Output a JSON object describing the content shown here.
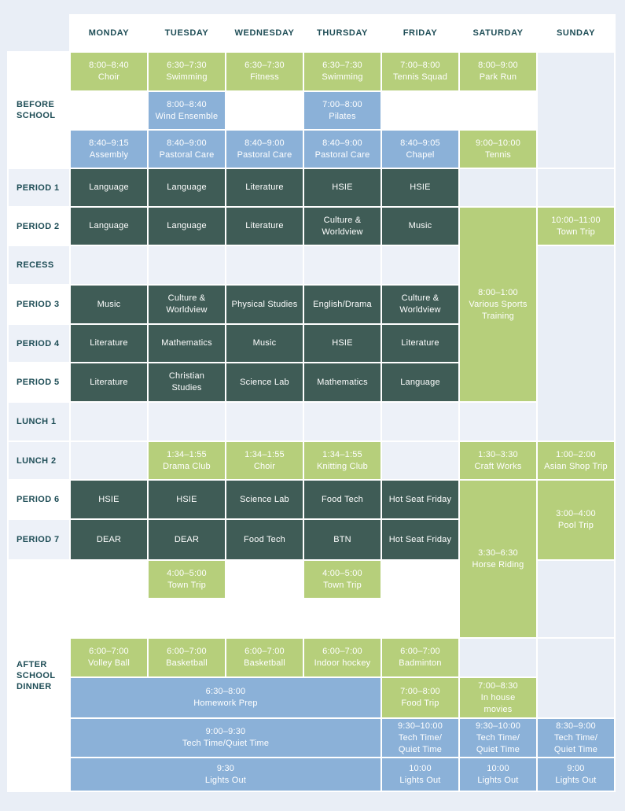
{
  "title": "Weekly school timetable",
  "colors": {
    "green": "#b6cf7b",
    "blue": "#8bb1d8",
    "dark": "#3f5c56",
    "stripe": "#edf1f8",
    "pagebg": "#e9eef6",
    "ink": "#1e4d56",
    "cell_text": "#ffffff"
  },
  "days": [
    "MONDAY",
    "TUESDAY",
    "WEDNESDAY",
    "THURSDAY",
    "FRIDAY",
    "SATURDAY",
    "SUNDAY"
  ],
  "cells": [
    {
      "r": 2,
      "c": 1,
      "rs": 3,
      "k": "label",
      "name": "row-label-before-school",
      "lines": [
        "BEFORE",
        "SCHOOL"
      ]
    },
    {
      "r": 5,
      "c": 1,
      "k": "label-stripe",
      "name": "row-label-period-1",
      "lines": [
        "PERIOD 1"
      ]
    },
    {
      "r": 6,
      "c": 1,
      "k": "label",
      "name": "row-label-period-2",
      "lines": [
        "PERIOD 2"
      ]
    },
    {
      "r": 7,
      "c": 1,
      "k": "label-stripe",
      "name": "row-label-recess",
      "lines": [
        "RECESS"
      ]
    },
    {
      "r": 8,
      "c": 1,
      "k": "label",
      "name": "row-label-period-3",
      "lines": [
        "PERIOD 3"
      ]
    },
    {
      "r": 9,
      "c": 1,
      "k": "label-stripe",
      "name": "row-label-period-4",
      "lines": [
        "PERIOD 4"
      ]
    },
    {
      "r": 10,
      "c": 1,
      "k": "label",
      "name": "row-label-period-5",
      "lines": [
        "PERIOD 5"
      ]
    },
    {
      "r": 11,
      "c": 1,
      "k": "label-stripe",
      "name": "row-label-lunch-1",
      "lines": [
        "LUNCH 1"
      ]
    },
    {
      "r": 12,
      "c": 1,
      "k": "label-stripe",
      "name": "row-label-lunch-2",
      "lines": [
        "LUNCH 2"
      ]
    },
    {
      "r": 13,
      "c": 1,
      "k": "label",
      "name": "row-label-period-6",
      "lines": [
        "PERIOD 6"
      ]
    },
    {
      "r": 14,
      "c": 1,
      "k": "label-stripe",
      "name": "row-label-period-7",
      "lines": [
        "PERIOD 7"
      ]
    },
    {
      "r": 15,
      "c": 1,
      "rs": 6,
      "k": "label-after",
      "name": "row-label-after-school-dinner",
      "lines": [
        "AFTER",
        "SCHOOL",
        "DINNER"
      ]
    },
    {
      "r": 2,
      "c": 2,
      "k": "green",
      "lines": [
        "8:00–8:40",
        "Choir"
      ]
    },
    {
      "r": 2,
      "c": 3,
      "k": "green",
      "lines": [
        "6:30–7:30",
        "Swimming"
      ]
    },
    {
      "r": 2,
      "c": 4,
      "k": "green",
      "lines": [
        "6:30–7:30",
        "Fitness"
      ]
    },
    {
      "r": 2,
      "c": 5,
      "k": "green",
      "lines": [
        "6:30–7:30",
        "Swimming"
      ]
    },
    {
      "r": 2,
      "c": 6,
      "k": "green",
      "lines": [
        "7:00–8:00",
        "Tennis Squad"
      ]
    },
    {
      "r": 2,
      "c": 7,
      "k": "green",
      "lines": [
        "8:00–9:00",
        "Park Run"
      ]
    },
    {
      "r": 2,
      "c": 8,
      "rs": 3,
      "k": "bg"
    },
    {
      "r": 3,
      "c": 2,
      "k": "white"
    },
    {
      "r": 3,
      "c": 3,
      "k": "blue",
      "lines": [
        "8:00–8:40",
        "Wind Ensemble"
      ]
    },
    {
      "r": 3,
      "c": 4,
      "k": "white"
    },
    {
      "r": 3,
      "c": 5,
      "k": "blue",
      "lines": [
        "7:00–8:00",
        "Pilates"
      ]
    },
    {
      "r": 3,
      "c": 6,
      "k": "white"
    },
    {
      "r": 3,
      "c": 7,
      "k": "white"
    },
    {
      "r": 4,
      "c": 2,
      "k": "blue",
      "lines": [
        "8:40–9:15",
        "Assembly"
      ]
    },
    {
      "r": 4,
      "c": 3,
      "k": "blue",
      "lines": [
        "8:40–9:00",
        "Pastoral Care"
      ]
    },
    {
      "r": 4,
      "c": 4,
      "k": "blue",
      "lines": [
        "8:40–9:00",
        "Pastoral Care"
      ]
    },
    {
      "r": 4,
      "c": 5,
      "k": "blue",
      "lines": [
        "8:40–9:00",
        "Pastoral Care"
      ]
    },
    {
      "r": 4,
      "c": 6,
      "k": "blue",
      "lines": [
        "8:40–9:05",
        "Chapel"
      ]
    },
    {
      "r": 4,
      "c": 7,
      "k": "green",
      "lines": [
        "9:00–10:00",
        "Tennis"
      ]
    },
    {
      "r": 5,
      "c": 2,
      "k": "dark",
      "lines": [
        "Language"
      ]
    },
    {
      "r": 5,
      "c": 3,
      "k": "dark",
      "lines": [
        "Language"
      ]
    },
    {
      "r": 5,
      "c": 4,
      "k": "dark",
      "lines": [
        "Literature"
      ]
    },
    {
      "r": 5,
      "c": 5,
      "k": "dark",
      "lines": [
        "HSIE"
      ]
    },
    {
      "r": 5,
      "c": 6,
      "k": "dark",
      "lines": [
        "HSIE"
      ]
    },
    {
      "r": 5,
      "c": 7,
      "k": "bg"
    },
    {
      "r": 5,
      "c": 8,
      "k": "bg"
    },
    {
      "r": 6,
      "c": 2,
      "k": "dark",
      "lines": [
        "Language"
      ]
    },
    {
      "r": 6,
      "c": 3,
      "k": "dark",
      "lines": [
        "Language"
      ]
    },
    {
      "r": 6,
      "c": 4,
      "k": "dark",
      "lines": [
        "Literature"
      ]
    },
    {
      "r": 6,
      "c": 5,
      "k": "dark",
      "lines": [
        "Culture &",
        "Worldview"
      ]
    },
    {
      "r": 6,
      "c": 6,
      "k": "dark",
      "lines": [
        "Music"
      ]
    },
    {
      "r": 6,
      "c": 7,
      "rs": 5,
      "k": "green",
      "lines": [
        "8:00–1:00",
        "Various Sports",
        "Training"
      ]
    },
    {
      "r": 6,
      "c": 8,
      "k": "green",
      "lines": [
        "10:00–11:00",
        "Town Trip"
      ]
    },
    {
      "r": 7,
      "c": 2,
      "k": "stripe"
    },
    {
      "r": 7,
      "c": 3,
      "k": "stripe"
    },
    {
      "r": 7,
      "c": 4,
      "k": "stripe"
    },
    {
      "r": 7,
      "c": 5,
      "k": "stripe"
    },
    {
      "r": 7,
      "c": 6,
      "k": "stripe"
    },
    {
      "r": 7,
      "c": 8,
      "rs": 5,
      "k": "bg"
    },
    {
      "r": 8,
      "c": 2,
      "k": "dark",
      "lines": [
        "Music"
      ]
    },
    {
      "r": 8,
      "c": 3,
      "k": "dark",
      "lines": [
        "Culture &",
        "Worldview"
      ]
    },
    {
      "r": 8,
      "c": 4,
      "k": "dark",
      "lines": [
        "Physical Studies"
      ]
    },
    {
      "r": 8,
      "c": 5,
      "k": "dark",
      "lines": [
        "English/Drama"
      ]
    },
    {
      "r": 8,
      "c": 6,
      "k": "dark",
      "lines": [
        "Culture &",
        "Worldview"
      ]
    },
    {
      "r": 9,
      "c": 2,
      "k": "dark",
      "lines": [
        "Literature"
      ]
    },
    {
      "r": 9,
      "c": 3,
      "k": "dark",
      "lines": [
        "Mathematics"
      ]
    },
    {
      "r": 9,
      "c": 4,
      "k": "dark",
      "lines": [
        "Music"
      ]
    },
    {
      "r": 9,
      "c": 5,
      "k": "dark",
      "lines": [
        "HSIE"
      ]
    },
    {
      "r": 9,
      "c": 6,
      "k": "dark",
      "lines": [
        "Literature"
      ]
    },
    {
      "r": 10,
      "c": 2,
      "k": "dark",
      "lines": [
        "Literature"
      ]
    },
    {
      "r": 10,
      "c": 3,
      "k": "dark",
      "lines": [
        "Christian",
        "Studies"
      ]
    },
    {
      "r": 10,
      "c": 4,
      "k": "dark",
      "lines": [
        "Science Lab"
      ]
    },
    {
      "r": 10,
      "c": 5,
      "k": "dark",
      "lines": [
        "Mathematics"
      ]
    },
    {
      "r": 10,
      "c": 6,
      "k": "dark",
      "lines": [
        "Language"
      ]
    },
    {
      "r": 11,
      "c": 2,
      "k": "stripe"
    },
    {
      "r": 11,
      "c": 3,
      "k": "stripe"
    },
    {
      "r": 11,
      "c": 4,
      "k": "stripe"
    },
    {
      "r": 11,
      "c": 5,
      "k": "stripe"
    },
    {
      "r": 11,
      "c": 6,
      "k": "stripe"
    },
    {
      "r": 11,
      "c": 7,
      "k": "stripe"
    },
    {
      "r": 12,
      "c": 2,
      "k": "stripe"
    },
    {
      "r": 12,
      "c": 3,
      "k": "green",
      "lines": [
        "1:34–1:55",
        "Drama Club"
      ]
    },
    {
      "r": 12,
      "c": 4,
      "k": "green",
      "lines": [
        "1:34–1:55",
        "Choir"
      ]
    },
    {
      "r": 12,
      "c": 5,
      "k": "green",
      "lines": [
        "1:34–1:55",
        "Knitting Club"
      ]
    },
    {
      "r": 12,
      "c": 6,
      "k": "stripe"
    },
    {
      "r": 12,
      "c": 7,
      "k": "green",
      "lines": [
        "1:30–3:30",
        "Craft Works"
      ]
    },
    {
      "r": 12,
      "c": 8,
      "k": "green",
      "lines": [
        "1:00–2:00",
        "Asian Shop Trip"
      ]
    },
    {
      "r": 13,
      "c": 2,
      "k": "dark",
      "lines": [
        "HSIE"
      ]
    },
    {
      "r": 13,
      "c": 3,
      "k": "dark",
      "lines": [
        "HSIE"
      ]
    },
    {
      "r": 13,
      "c": 4,
      "k": "dark",
      "lines": [
        "Science Lab"
      ]
    },
    {
      "r": 13,
      "c": 5,
      "k": "dark",
      "lines": [
        "Food Tech"
      ]
    },
    {
      "r": 13,
      "c": 6,
      "k": "dark",
      "lines": [
        "Hot Seat Friday"
      ]
    },
    {
      "r": 13,
      "c": 7,
      "rs": 4,
      "k": "green",
      "lines": [
        "3:30–6:30",
        "Horse Riding"
      ]
    },
    {
      "r": 13,
      "c": 8,
      "rs": 2,
      "k": "green",
      "lines": [
        "3:00–4:00",
        "Pool Trip"
      ]
    },
    {
      "r": 14,
      "c": 2,
      "k": "dark",
      "lines": [
        "DEAR"
      ]
    },
    {
      "r": 14,
      "c": 3,
      "k": "dark",
      "lines": [
        "DEAR"
      ]
    },
    {
      "r": 14,
      "c": 4,
      "k": "dark",
      "lines": [
        "Food Tech"
      ]
    },
    {
      "r": 14,
      "c": 5,
      "k": "dark",
      "lines": [
        "BTN"
      ]
    },
    {
      "r": 14,
      "c": 6,
      "k": "dark",
      "lines": [
        "Hot Seat Friday"
      ]
    },
    {
      "r": 15,
      "c": 2,
      "k": "white"
    },
    {
      "r": 15,
      "c": 3,
      "k": "green",
      "lines": [
        "4:00–5:00",
        "Town Trip"
      ]
    },
    {
      "r": 15,
      "c": 4,
      "k": "white"
    },
    {
      "r": 15,
      "c": 5,
      "k": "green",
      "lines": [
        "4:00–5:00",
        "Town Trip"
      ]
    },
    {
      "r": 15,
      "c": 6,
      "k": "white"
    },
    {
      "r": 15,
      "c": 8,
      "rs": 2,
      "k": "bg"
    },
    {
      "r": 16,
      "c": 2,
      "cs": 5,
      "k": "white"
    },
    {
      "r": 17,
      "c": 2,
      "k": "green",
      "lines": [
        "6:00–7:00",
        "Volley Ball"
      ]
    },
    {
      "r": 17,
      "c": 3,
      "k": "green",
      "lines": [
        "6:00–7:00",
        "Basketball"
      ]
    },
    {
      "r": 17,
      "c": 4,
      "k": "green",
      "lines": [
        "6:00–7:00",
        "Basketball"
      ]
    },
    {
      "r": 17,
      "c": 5,
      "k": "green",
      "lines": [
        "6:00–7:00",
        "Indoor hockey"
      ]
    },
    {
      "r": 17,
      "c": 6,
      "k": "green",
      "lines": [
        "6:00–7:00",
        "Badminton"
      ]
    },
    {
      "r": 17,
      "c": 7,
      "k": "bg"
    },
    {
      "r": 17,
      "c": 8,
      "rs": 2,
      "k": "bg"
    },
    {
      "r": 18,
      "c": 2,
      "cs": 4,
      "k": "blue",
      "lines": [
        "6:30–8:00",
        "Homework Prep"
      ]
    },
    {
      "r": 18,
      "c": 6,
      "k": "green",
      "lines": [
        "7:00–8:00",
        "Food Trip"
      ]
    },
    {
      "r": 18,
      "c": 7,
      "k": "green",
      "lines": [
        "7:00–8:30",
        "In house",
        "movies"
      ]
    },
    {
      "r": 19,
      "c": 2,
      "cs": 4,
      "k": "blue",
      "lines": [
        "9:00–9:30",
        "Tech Time/Quiet Time"
      ]
    },
    {
      "r": 19,
      "c": 6,
      "k": "blue",
      "lines": [
        "9:30–10:00",
        "Tech Time/",
        "Quiet Time"
      ]
    },
    {
      "r": 19,
      "c": 7,
      "k": "blue",
      "lines": [
        "9:30–10:00",
        "Tech Time/",
        "Quiet Time"
      ]
    },
    {
      "r": 19,
      "c": 8,
      "k": "blue",
      "lines": [
        "8:30–9:00",
        "Tech Time/",
        "Quiet Time"
      ]
    },
    {
      "r": 20,
      "c": 2,
      "cs": 4,
      "k": "blue",
      "lines": [
        "9:30",
        "Lights Out"
      ]
    },
    {
      "r": 20,
      "c": 6,
      "k": "blue",
      "lines": [
        "10:00",
        "Lights Out"
      ]
    },
    {
      "r": 20,
      "c": 7,
      "k": "blue",
      "lines": [
        "10:00",
        "Lights Out"
      ]
    },
    {
      "r": 20,
      "c": 8,
      "k": "blue",
      "lines": [
        "9:00",
        "Lights Out"
      ]
    }
  ]
}
